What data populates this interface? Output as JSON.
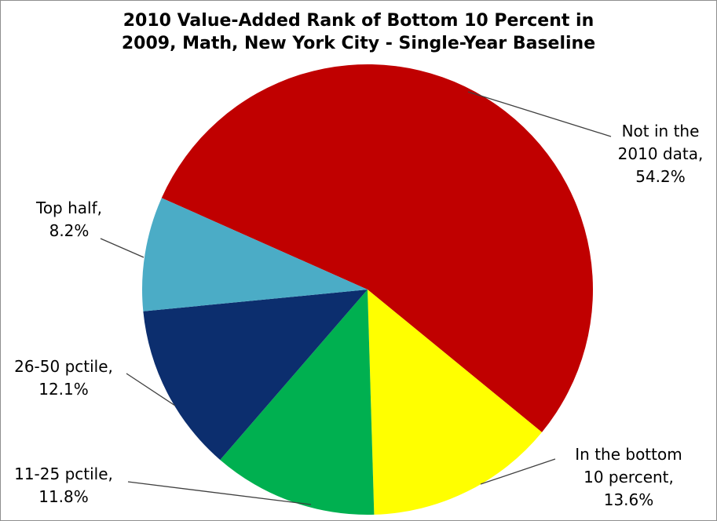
{
  "window": {
    "background": "#FFFFFF",
    "border_color": "#8F8F8F"
  },
  "chart_data": {
    "type": "pie",
    "title": "2010 Value-Added Rank of Bottom 10 Percent in\n2009, Math, New York City - Single-Year Baseline",
    "legend": "none",
    "values_unit": "%",
    "direction": "clockwise",
    "start_angle_deg": 294,
    "slices": [
      {
        "label": "Not in the 2010 data",
        "value": 54.2,
        "color": "#C00000",
        "callout": "Not in the\n2010 data,\n54.2%"
      },
      {
        "label": "In the bottom 10 percent",
        "value": 13.6,
        "color": "#FFFF00",
        "callout": "In the bottom\n10 percent,\n13.6%"
      },
      {
        "label": "11-25 pctile",
        "value": 11.8,
        "color": "#00B050",
        "callout": "11-25 pctile,\n11.8%"
      },
      {
        "label": "26-50 pctile",
        "value": 12.1,
        "color": "#0C2E6E",
        "callout": "26-50 pctile,\n12.1%"
      },
      {
        "label": "Top half",
        "value": 8.2,
        "color": "#4BACC6",
        "callout": "Top half,\n8.2%"
      }
    ],
    "leader_line_color": "#404040"
  }
}
